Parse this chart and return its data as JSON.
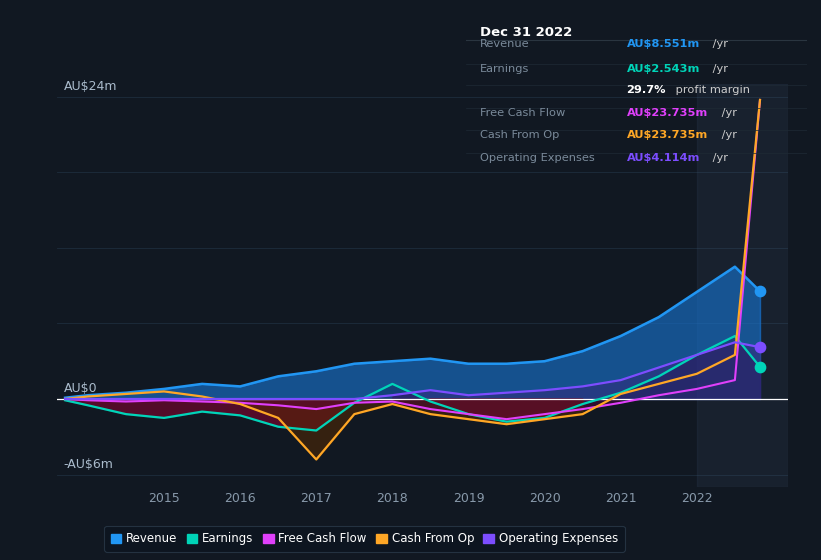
{
  "bg_color": "#111822",
  "chart_bg": "#111822",
  "grid_color": "#1e2d3d",
  "zero_line_color": "#ffffff",
  "title_date": "Dec 31 2022",
  "ylabel_top": "AU$24m",
  "ylabel_zero": "AU$0",
  "ylabel_bottom": "-AU$6m",
  "ylim": [
    -7,
    25
  ],
  "y_axis_min": -6,
  "y_axis_max": 24,
  "xlim": [
    2013.6,
    2023.2
  ],
  "xticks": [
    2015,
    2016,
    2017,
    2018,
    2019,
    2020,
    2021,
    2022
  ],
  "series": {
    "Revenue": {
      "color": "#2196f3",
      "x": [
        2013.7,
        2014.0,
        2014.5,
        2015.0,
        2015.5,
        2016.0,
        2016.5,
        2017.0,
        2017.5,
        2018.0,
        2018.5,
        2019.0,
        2019.5,
        2020.0,
        2020.5,
        2021.0,
        2021.5,
        2022.0,
        2022.5,
        2022.83
      ],
      "y": [
        0.1,
        0.3,
        0.5,
        0.8,
        1.2,
        1.0,
        1.8,
        2.2,
        2.8,
        3.0,
        3.2,
        2.8,
        2.8,
        3.0,
        3.8,
        5.0,
        6.5,
        8.5,
        10.5,
        8.551
      ]
    },
    "Earnings": {
      "color": "#00d4b8",
      "x": [
        2013.7,
        2014.0,
        2014.5,
        2015.0,
        2015.5,
        2016.0,
        2016.5,
        2017.0,
        2017.5,
        2018.0,
        2018.5,
        2019.0,
        2019.5,
        2020.0,
        2020.5,
        2021.0,
        2021.5,
        2022.0,
        2022.5,
        2022.83
      ],
      "y": [
        -0.1,
        -0.5,
        -1.2,
        -1.5,
        -1.0,
        -1.3,
        -2.2,
        -2.5,
        -0.3,
        1.2,
        -0.2,
        -1.2,
        -1.8,
        -1.5,
        -0.4,
        0.5,
        1.8,
        3.5,
        5.0,
        2.543
      ]
    },
    "FreeCashFlow": {
      "color": "#e040fb",
      "x": [
        2013.7,
        2014.0,
        2014.5,
        2015.0,
        2015.5,
        2016.0,
        2016.5,
        2017.0,
        2017.5,
        2018.0,
        2018.5,
        2019.0,
        2019.5,
        2020.0,
        2020.5,
        2021.0,
        2021.5,
        2022.0,
        2022.5,
        2022.83
      ],
      "y": [
        0.0,
        -0.1,
        -0.2,
        -0.1,
        -0.2,
        -0.3,
        -0.5,
        -0.8,
        -0.3,
        -0.2,
        -0.8,
        -1.2,
        -1.6,
        -1.2,
        -0.8,
        -0.3,
        0.3,
        0.8,
        1.5,
        23.735
      ]
    },
    "CashFromOp": {
      "color": "#ffa726",
      "x": [
        2013.7,
        2014.0,
        2014.5,
        2015.0,
        2015.5,
        2016.0,
        2016.5,
        2017.0,
        2017.5,
        2018.0,
        2018.5,
        2019.0,
        2019.5,
        2020.0,
        2020.5,
        2021.0,
        2021.5,
        2022.0,
        2022.5,
        2022.83
      ],
      "y": [
        0.0,
        0.2,
        0.4,
        0.6,
        0.2,
        -0.4,
        -1.5,
        -4.8,
        -1.2,
        -0.4,
        -1.2,
        -1.6,
        -2.0,
        -1.6,
        -1.2,
        0.4,
        1.2,
        2.0,
        3.5,
        23.735
      ]
    },
    "OperatingExpenses": {
      "color": "#7c4dff",
      "x": [
        2013.7,
        2014.0,
        2014.5,
        2015.0,
        2015.5,
        2016.0,
        2016.5,
        2017.0,
        2017.5,
        2018.0,
        2018.5,
        2019.0,
        2019.5,
        2020.0,
        2020.5,
        2021.0,
        2021.5,
        2022.0,
        2022.5,
        2022.83
      ],
      "y": [
        0.0,
        0.0,
        0.0,
        0.0,
        0.0,
        0.0,
        0.0,
        0.0,
        0.0,
        0.3,
        0.7,
        0.3,
        0.5,
        0.7,
        1.0,
        1.5,
        2.5,
        3.5,
        4.5,
        4.114
      ]
    }
  },
  "legend": [
    {
      "label": "Revenue",
      "color": "#2196f3"
    },
    {
      "label": "Earnings",
      "color": "#00d4b8"
    },
    {
      "label": "Free Cash Flow",
      "color": "#e040fb"
    },
    {
      "label": "Cash From Op",
      "color": "#ffa726"
    },
    {
      "label": "Operating Expenses",
      "color": "#7c4dff"
    }
  ],
  "highlight_x_start": 2022.0,
  "info_box": {
    "title": "Dec 31 2022",
    "rows": [
      {
        "label": "Revenue",
        "value": "AU$8.551m",
        "suffix": " /yr",
        "label_color": "#7a8a9a",
        "value_color": "#2196f3",
        "suffix_color": "#cccccc"
      },
      {
        "label": "Earnings",
        "value": "AU$2.543m",
        "suffix": " /yr",
        "label_color": "#7a8a9a",
        "value_color": "#00d4b8",
        "suffix_color": "#cccccc"
      },
      {
        "label": "",
        "value": "29.7%",
        "suffix": " profit margin",
        "label_color": "#7a8a9a",
        "value_color": "#ffffff",
        "suffix_color": "#cccccc"
      },
      {
        "label": "Free Cash Flow",
        "value": "AU$23.735m",
        "suffix": " /yr",
        "label_color": "#7a8a9a",
        "value_color": "#e040fb",
        "suffix_color": "#cccccc"
      },
      {
        "label": "Cash From Op",
        "value": "AU$23.735m",
        "suffix": " /yr",
        "label_color": "#7a8a9a",
        "value_color": "#ffa726",
        "suffix_color": "#cccccc"
      },
      {
        "label": "Operating Expenses",
        "value": "AU$4.114m",
        "suffix": " /yr",
        "label_color": "#7a8a9a",
        "value_color": "#7c4dff",
        "suffix_color": "#cccccc"
      }
    ]
  }
}
